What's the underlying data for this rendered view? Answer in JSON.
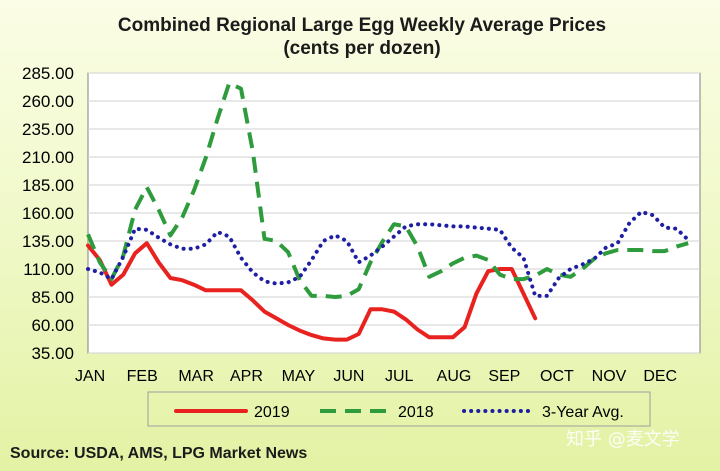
{
  "chart_data": {
    "type": "line",
    "title": "Combined Regional Large Egg Weekly Average Prices",
    "subtitle": "(cents per dozen)",
    "source": "Source: USDA, AMS, LPG  Market News",
    "watermark": "知乎 @麦文学",
    "ylim": [
      35,
      285
    ],
    "y_ticks": [
      "285.00",
      "260.00",
      "235.00",
      "210.00",
      "185.00",
      "160.00",
      "135.00",
      "110.00",
      "85.00",
      "60.00",
      "35.00"
    ],
    "x_ticks": [
      "JAN",
      "FEB",
      "MAR",
      "APR",
      "MAY",
      "JUN",
      "JUL",
      "AUG",
      "SEP",
      "OCT",
      "NOV",
      "DEC"
    ],
    "xlim": [
      1,
      53
    ],
    "grid": true,
    "legend_position": "bottom",
    "series": [
      {
        "name": "2019",
        "color": "#e8231f",
        "style": "solid",
        "points": [
          [
            1,
            131
          ],
          [
            2,
            118
          ],
          [
            3,
            96
          ],
          [
            4,
            105
          ],
          [
            5,
            124
          ],
          [
            6,
            133
          ],
          [
            7,
            116
          ],
          [
            8,
            102
          ],
          [
            9,
            100
          ],
          [
            10,
            96
          ],
          [
            11,
            91
          ],
          [
            12,
            91
          ],
          [
            13,
            91
          ],
          [
            14,
            91
          ],
          [
            15,
            82
          ],
          [
            16,
            72
          ],
          [
            17,
            66
          ],
          [
            18,
            60
          ],
          [
            19,
            55
          ],
          [
            20,
            51
          ],
          [
            21,
            48
          ],
          [
            22,
            47
          ],
          [
            23,
            47
          ],
          [
            24,
            52
          ],
          [
            25,
            74
          ],
          [
            26,
            74
          ],
          [
            27,
            72
          ],
          [
            28,
            65
          ],
          [
            29,
            56
          ],
          [
            30,
            49
          ],
          [
            31,
            49
          ],
          [
            32,
            49
          ],
          [
            33,
            58
          ],
          [
            34,
            88
          ],
          [
            35,
            108
          ],
          [
            36,
            110
          ],
          [
            37,
            110
          ],
          [
            38,
            88
          ],
          [
            39,
            66
          ]
        ]
      },
      {
        "name": "2018",
        "color": "#2e9b3d",
        "style": "dashed",
        "points": [
          [
            1,
            141
          ],
          [
            2,
            116
          ],
          [
            3,
            101
          ],
          [
            4,
            122
          ],
          [
            5,
            163
          ],
          [
            6,
            183
          ],
          [
            7,
            163
          ],
          [
            8,
            140
          ],
          [
            9,
            156
          ],
          [
            10,
            180
          ],
          [
            11,
            209
          ],
          [
            12,
            244
          ],
          [
            13,
            276
          ],
          [
            14,
            271
          ],
          [
            15,
            215
          ],
          [
            16,
            137
          ],
          [
            17,
            135
          ],
          [
            18,
            125
          ],
          [
            19,
            100
          ],
          [
            20,
            86
          ],
          [
            21,
            86
          ],
          [
            22,
            85
          ],
          [
            23,
            86
          ],
          [
            24,
            92
          ],
          [
            25,
            116
          ],
          [
            26,
            134
          ],
          [
            27,
            150
          ],
          [
            28,
            148
          ],
          [
            29,
            130
          ],
          [
            30,
            103
          ],
          [
            31,
            108
          ],
          [
            32,
            115
          ],
          [
            33,
            120
          ],
          [
            34,
            122
          ],
          [
            35,
            118
          ],
          [
            36,
            105
          ],
          [
            37,
            101
          ],
          [
            38,
            101
          ],
          [
            39,
            104
          ],
          [
            40,
            110
          ],
          [
            41,
            105
          ],
          [
            42,
            103
          ],
          [
            43,
            110
          ],
          [
            44,
            119
          ],
          [
            45,
            124
          ],
          [
            46,
            127
          ],
          [
            47,
            127
          ],
          [
            48,
            127
          ],
          [
            49,
            126
          ],
          [
            50,
            126
          ],
          [
            51,
            130
          ],
          [
            52,
            133
          ]
        ]
      },
      {
        "name": "3-Year Avg.",
        "color": "#1f1fa3",
        "style": "dotted",
        "points": [
          [
            1,
            110
          ],
          [
            2,
            107
          ],
          [
            3,
            101
          ],
          [
            4,
            121
          ],
          [
            5,
            146
          ],
          [
            6,
            145
          ],
          [
            7,
            138
          ],
          [
            8,
            132
          ],
          [
            9,
            128
          ],
          [
            10,
            128
          ],
          [
            11,
            132
          ],
          [
            12,
            143
          ],
          [
            13,
            139
          ],
          [
            14,
            120
          ],
          [
            15,
            107
          ],
          [
            16,
            99
          ],
          [
            17,
            97
          ],
          [
            18,
            98
          ],
          [
            19,
            103
          ],
          [
            20,
            118
          ],
          [
            21,
            135
          ],
          [
            22,
            140
          ],
          [
            23,
            135
          ],
          [
            24,
            116
          ],
          [
            25,
            122
          ],
          [
            26,
            130
          ],
          [
            27,
            139
          ],
          [
            28,
            148
          ],
          [
            29,
            150
          ],
          [
            30,
            150
          ],
          [
            31,
            149
          ],
          [
            32,
            148
          ],
          [
            33,
            148
          ],
          [
            34,
            147
          ],
          [
            35,
            146
          ],
          [
            36,
            145
          ],
          [
            37,
            129
          ],
          [
            38,
            120
          ],
          [
            39,
            86
          ],
          [
            40,
            86
          ],
          [
            41,
            102
          ],
          [
            42,
            110
          ],
          [
            43,
            114
          ],
          [
            44,
            119
          ],
          [
            45,
            129
          ],
          [
            46,
            133
          ],
          [
            47,
            151
          ],
          [
            48,
            161
          ],
          [
            49,
            158
          ],
          [
            50,
            147
          ],
          [
            51,
            146
          ],
          [
            52,
            136
          ]
        ]
      }
    ]
  }
}
